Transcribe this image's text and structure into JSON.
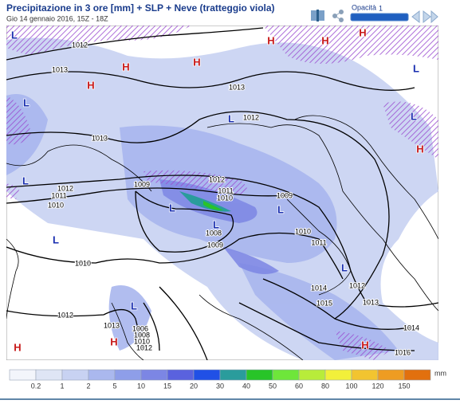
{
  "header": {
    "title": "Precipitazione in 3 ore [mm] + SLP + Neve (tratteggio viola)",
    "subtitle": "Gio 14 gennaio 2016, 15Z - 18Z",
    "opacity_label": "Opacità",
    "opacity_value": "1"
  },
  "map": {
    "isobar_labels": [
      "1012",
      "1013",
      "1013",
      "1012",
      "1013",
      "1012",
      "1011",
      "1010",
      "1009",
      "1009",
      "1012",
      "1011",
      "1010",
      "1008",
      "1009",
      "1010",
      "1011",
      "1010",
      "1014",
      "1012",
      "1015",
      "1013",
      "1012",
      "1013",
      "1006",
      "1008",
      "1010",
      "1012",
      "1014",
      "1016"
    ],
    "centers": [
      "L",
      "L",
      "L",
      "L",
      "L",
      "L",
      "L",
      "L",
      "L",
      "L",
      "L",
      "L",
      "H",
      "H",
      "H",
      "H",
      "H",
      "H",
      "H",
      "H",
      "H",
      "H"
    ]
  },
  "legend": {
    "labels": [
      "0.2",
      "1",
      "2",
      "5",
      "10",
      "15",
      "20",
      "30",
      "40",
      "50",
      "60",
      "80",
      "100",
      "120",
      "150"
    ],
    "unit": "mm",
    "colors": [
      "#f3f5fb",
      "#dfe5f5",
      "#c8d2f2",
      "#aab8ee",
      "#8e9ee9",
      "#7c86e4",
      "#5a62de",
      "#2050e6",
      "#2a9c9c",
      "#28c428",
      "#6ee63a",
      "#b8ec3a",
      "#f2f03a",
      "#f2c430",
      "#ee9c22",
      "#e2700e"
    ]
  }
}
